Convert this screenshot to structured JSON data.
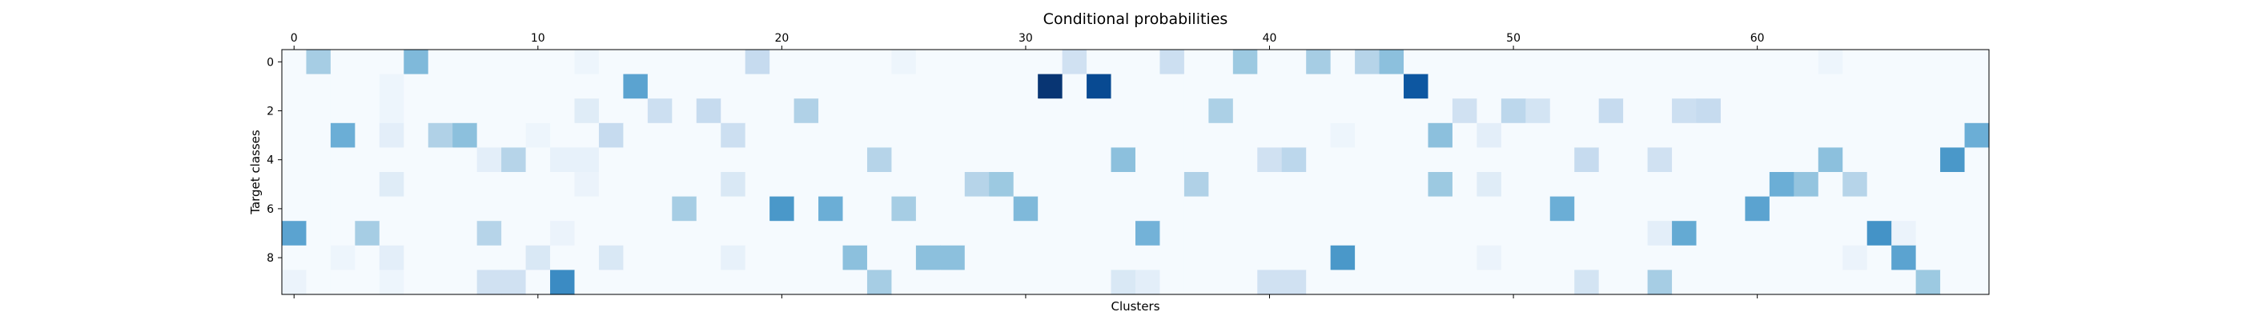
{
  "chart_data": {
    "type": "heatmap",
    "title": "Conditional probabilities",
    "xlabel": "Clusters",
    "ylabel": "Target classes",
    "x_axis_position": "top",
    "x_ticks": [
      0,
      10,
      20,
      30,
      40,
      50,
      60
    ],
    "y_ticks": [
      0,
      2,
      4,
      6,
      8
    ],
    "n_cols": 70,
    "n_rows": 10,
    "colormap": "Blues",
    "vmin": 0,
    "vmax": 1,
    "background_value": 0.01,
    "cells": [
      {
        "r": 0,
        "c": 1,
        "v": 0.35
      },
      {
        "r": 0,
        "c": 5,
        "v": 0.45
      },
      {
        "r": 0,
        "c": 19,
        "v": 0.25
      },
      {
        "r": 0,
        "c": 32,
        "v": 0.2
      },
      {
        "r": 0,
        "c": 36,
        "v": 0.22
      },
      {
        "r": 0,
        "c": 39,
        "v": 0.38
      },
      {
        "r": 0,
        "c": 42,
        "v": 0.35
      },
      {
        "r": 0,
        "c": 44,
        "v": 0.3
      },
      {
        "r": 0,
        "c": 45,
        "v": 0.42
      },
      {
        "r": 0,
        "c": 12,
        "v": 0.05
      },
      {
        "r": 0,
        "c": 25,
        "v": 0.05
      },
      {
        "r": 0,
        "c": 63,
        "v": 0.05
      },
      {
        "r": 1,
        "c": 14,
        "v": 0.55
      },
      {
        "r": 1,
        "c": 31,
        "v": 0.98
      },
      {
        "r": 1,
        "c": 33,
        "v": 0.9
      },
      {
        "r": 1,
        "c": 46,
        "v": 0.85
      },
      {
        "r": 1,
        "c": 4,
        "v": 0.05
      },
      {
        "r": 2,
        "c": 12,
        "v": 0.12
      },
      {
        "r": 2,
        "c": 15,
        "v": 0.22
      },
      {
        "r": 2,
        "c": 17,
        "v": 0.25
      },
      {
        "r": 2,
        "c": 21,
        "v": 0.32
      },
      {
        "r": 2,
        "c": 38,
        "v": 0.33
      },
      {
        "r": 2,
        "c": 48,
        "v": 0.2
      },
      {
        "r": 2,
        "c": 50,
        "v": 0.28
      },
      {
        "r": 2,
        "c": 51,
        "v": 0.18
      },
      {
        "r": 2,
        "c": 54,
        "v": 0.25
      },
      {
        "r": 2,
        "c": 57,
        "v": 0.22
      },
      {
        "r": 2,
        "c": 58,
        "v": 0.25
      },
      {
        "r": 2,
        "c": 4,
        "v": 0.05
      },
      {
        "r": 3,
        "c": 2,
        "v": 0.5
      },
      {
        "r": 3,
        "c": 4,
        "v": 0.1
      },
      {
        "r": 3,
        "c": 6,
        "v": 0.32
      },
      {
        "r": 3,
        "c": 7,
        "v": 0.42
      },
      {
        "r": 3,
        "c": 10,
        "v": 0.05
      },
      {
        "r": 3,
        "c": 13,
        "v": 0.25
      },
      {
        "r": 3,
        "c": 18,
        "v": 0.22
      },
      {
        "r": 3,
        "c": 47,
        "v": 0.42
      },
      {
        "r": 3,
        "c": 49,
        "v": 0.1
      },
      {
        "r": 3,
        "c": 69,
        "v": 0.5
      },
      {
        "r": 3,
        "c": 43,
        "v": 0.05
      },
      {
        "r": 4,
        "c": 8,
        "v": 0.1
      },
      {
        "r": 4,
        "c": 9,
        "v": 0.3
      },
      {
        "r": 4,
        "c": 11,
        "v": 0.08
      },
      {
        "r": 4,
        "c": 12,
        "v": 0.08
      },
      {
        "r": 4,
        "c": 24,
        "v": 0.3
      },
      {
        "r": 4,
        "c": 34,
        "v": 0.42
      },
      {
        "r": 4,
        "c": 40,
        "v": 0.2
      },
      {
        "r": 4,
        "c": 41,
        "v": 0.28
      },
      {
        "r": 4,
        "c": 53,
        "v": 0.25
      },
      {
        "r": 4,
        "c": 56,
        "v": 0.2
      },
      {
        "r": 4,
        "c": 63,
        "v": 0.42
      },
      {
        "r": 4,
        "c": 68,
        "v": 0.6
      },
      {
        "r": 5,
        "c": 4,
        "v": 0.12
      },
      {
        "r": 5,
        "c": 12,
        "v": 0.06
      },
      {
        "r": 5,
        "c": 18,
        "v": 0.15
      },
      {
        "r": 5,
        "c": 28,
        "v": 0.3
      },
      {
        "r": 5,
        "c": 29,
        "v": 0.38
      },
      {
        "r": 5,
        "c": 37,
        "v": 0.32
      },
      {
        "r": 5,
        "c": 47,
        "v": 0.38
      },
      {
        "r": 5,
        "c": 49,
        "v": 0.12
      },
      {
        "r": 5,
        "c": 61,
        "v": 0.5
      },
      {
        "r": 5,
        "c": 62,
        "v": 0.4
      },
      {
        "r": 5,
        "c": 64,
        "v": 0.3
      },
      {
        "r": 6,
        "c": 16,
        "v": 0.35
      },
      {
        "r": 6,
        "c": 20,
        "v": 0.6
      },
      {
        "r": 6,
        "c": 22,
        "v": 0.5
      },
      {
        "r": 6,
        "c": 25,
        "v": 0.35
      },
      {
        "r": 6,
        "c": 30,
        "v": 0.45
      },
      {
        "r": 6,
        "c": 52,
        "v": 0.5
      },
      {
        "r": 6,
        "c": 60,
        "v": 0.55
      },
      {
        "r": 7,
        "c": 0,
        "v": 0.55
      },
      {
        "r": 7,
        "c": 3,
        "v": 0.35
      },
      {
        "r": 7,
        "c": 8,
        "v": 0.3
      },
      {
        "r": 7,
        "c": 11,
        "v": 0.06
      },
      {
        "r": 7,
        "c": 35,
        "v": 0.48
      },
      {
        "r": 7,
        "c": 56,
        "v": 0.1
      },
      {
        "r": 7,
        "c": 57,
        "v": 0.52
      },
      {
        "r": 7,
        "c": 65,
        "v": 0.62
      },
      {
        "r": 7,
        "c": 66,
        "v": 0.06
      },
      {
        "r": 8,
        "c": 4,
        "v": 0.1
      },
      {
        "r": 8,
        "c": 10,
        "v": 0.15
      },
      {
        "r": 8,
        "c": 13,
        "v": 0.15
      },
      {
        "r": 8,
        "c": 18,
        "v": 0.08
      },
      {
        "r": 8,
        "c": 23,
        "v": 0.42
      },
      {
        "r": 8,
        "c": 26,
        "v": 0.42
      },
      {
        "r": 8,
        "c": 27,
        "v": 0.42
      },
      {
        "r": 8,
        "c": 43,
        "v": 0.6
      },
      {
        "r": 8,
        "c": 49,
        "v": 0.06
      },
      {
        "r": 8,
        "c": 64,
        "v": 0.06
      },
      {
        "r": 8,
        "c": 66,
        "v": 0.55
      },
      {
        "r": 8,
        "c": 2,
        "v": 0.05
      },
      {
        "r": 9,
        "c": 0,
        "v": 0.06
      },
      {
        "r": 9,
        "c": 8,
        "v": 0.2
      },
      {
        "r": 9,
        "c": 9,
        "v": 0.2
      },
      {
        "r": 9,
        "c": 11,
        "v": 0.65
      },
      {
        "r": 9,
        "c": 24,
        "v": 0.35
      },
      {
        "r": 9,
        "c": 34,
        "v": 0.15
      },
      {
        "r": 9,
        "c": 35,
        "v": 0.1
      },
      {
        "r": 9,
        "c": 40,
        "v": 0.2
      },
      {
        "r": 9,
        "c": 41,
        "v": 0.2
      },
      {
        "r": 9,
        "c": 53,
        "v": 0.18
      },
      {
        "r": 9,
        "c": 56,
        "v": 0.35
      },
      {
        "r": 9,
        "c": 67,
        "v": 0.38
      },
      {
        "r": 9,
        "c": 4,
        "v": 0.05
      }
    ]
  }
}
